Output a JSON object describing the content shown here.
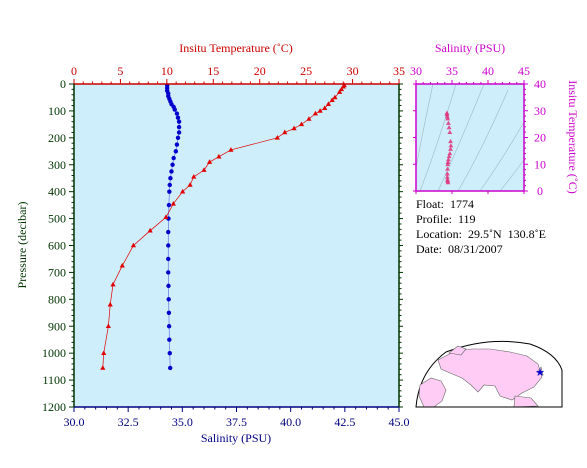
{
  "main_chart": {
    "temp_axis": {
      "label": "Insitu Temperature (˚C)",
      "range": [
        0,
        35
      ],
      "ticks": [
        0,
        5,
        10,
        15,
        20,
        25,
        30,
        35
      ]
    },
    "sal_axis": {
      "label": "Salinity (PSU)",
      "range": [
        30.0,
        45.0
      ],
      "ticks": [
        30.0,
        32.5,
        35.0,
        37.5,
        40.0,
        42.5,
        45.0
      ],
      "tick_labels": [
        "30.0",
        "32.5",
        "35.0",
        "37.5",
        "40.0",
        "42.5",
        "45.0"
      ]
    },
    "pressure_axis": {
      "label": "Pressure (decibar)",
      "range": [
        0,
        1200
      ],
      "inverted": true,
      "ticks": [
        0,
        100,
        200,
        300,
        400,
        500,
        600,
        700,
        800,
        900,
        1000,
        1100,
        1200
      ]
    }
  },
  "ts_chart": {
    "sal_axis": {
      "label": "Salinity (PSU)",
      "range": [
        30,
        45
      ],
      "ticks": [
        30,
        35,
        40,
        45
      ]
    },
    "temp_axis": {
      "label": "Insitu Temperature (˚C)",
      "range": [
        0,
        40
      ],
      "ticks": [
        0,
        10,
        20,
        30,
        40
      ]
    }
  },
  "info": {
    "float": "Float:  1774",
    "profile": "Profile:  119",
    "location": "Location:  29.5˚N  130.8˚E",
    "date": "Date:  08/31/2007"
  },
  "colors": {
    "temperature": "#e00000",
    "salinity": "#0000cc",
    "ts_points": "#e0307a",
    "plot_bg": "#cdeefa",
    "frame_main": "#cc0000",
    "frame_ts": "#cc00cc",
    "axis_bottom": "#000080",
    "axis_left": "#003300"
  },
  "chart_data": [
    {
      "type": "line",
      "series": [
        {
          "name": "Insitu Temperature (˚C)",
          "pressure": [
            5,
            10,
            20,
            30,
            50,
            60,
            75,
            90,
            100,
            110,
            130,
            150,
            165,
            180,
            200,
            245,
            270,
            290,
            320,
            345,
            375,
            400,
            445,
            495,
            545,
            600,
            675,
            745,
            820,
            900,
            1000,
            1055
          ],
          "temperature": [
            29.1,
            29.0,
            28.8,
            28.6,
            28.1,
            27.8,
            27.4,
            27.0,
            26.5,
            26.0,
            25.3,
            24.5,
            23.7,
            22.7,
            21.9,
            16.9,
            15.6,
            14.6,
            14.0,
            12.9,
            12.5,
            11.7,
            10.7,
            9.9,
            8.2,
            6.4,
            5.2,
            4.2,
            3.9,
            3.7,
            3.2,
            3.1
          ]
        },
        {
          "name": "Salinity (PSU)",
          "pressure": [
            5,
            15,
            25,
            35,
            45,
            55,
            65,
            75,
            85,
            95,
            110,
            125,
            140,
            160,
            180,
            200,
            225,
            250,
            275,
            300,
            325,
            350,
            375,
            400,
            450,
            500,
            550,
            600,
            650,
            700,
            750,
            800,
            850,
            900,
            950,
            1000,
            1055
          ],
          "salinity": [
            34.3,
            34.3,
            34.3,
            34.35,
            34.35,
            34.4,
            34.45,
            34.5,
            34.6,
            34.65,
            34.75,
            34.8,
            34.85,
            34.85,
            34.85,
            34.8,
            34.75,
            34.7,
            34.6,
            34.55,
            34.5,
            34.45,
            34.42,
            34.4,
            34.38,
            34.36,
            34.35,
            34.35,
            34.35,
            34.35,
            34.36,
            34.37,
            34.38,
            34.39,
            34.4,
            34.42,
            34.44
          ]
        }
      ]
    },
    {
      "type": "scatter",
      "xlabel": "Salinity (PSU)",
      "ylabel": "Insitu Temperature (˚C)",
      "xlim": [
        30,
        45
      ],
      "ylim": [
        0,
        40
      ],
      "series": [
        {
          "x": [
            34.3,
            34.3,
            34.35,
            34.4,
            34.5,
            34.6,
            34.7,
            34.8,
            34.85,
            34.8,
            34.7,
            34.6,
            34.5,
            34.45,
            34.4,
            34.38,
            34.36,
            34.35,
            34.37,
            34.4,
            34.44
          ],
          "y": [
            29.1,
            28.6,
            27.8,
            27.0,
            25.3,
            23.7,
            21.9,
            18.5,
            16.9,
            15.6,
            14.0,
            12.9,
            11.7,
            10.7,
            9.9,
            8.2,
            6.4,
            5.2,
            4.2,
            3.7,
            3.1
          ]
        }
      ]
    }
  ]
}
